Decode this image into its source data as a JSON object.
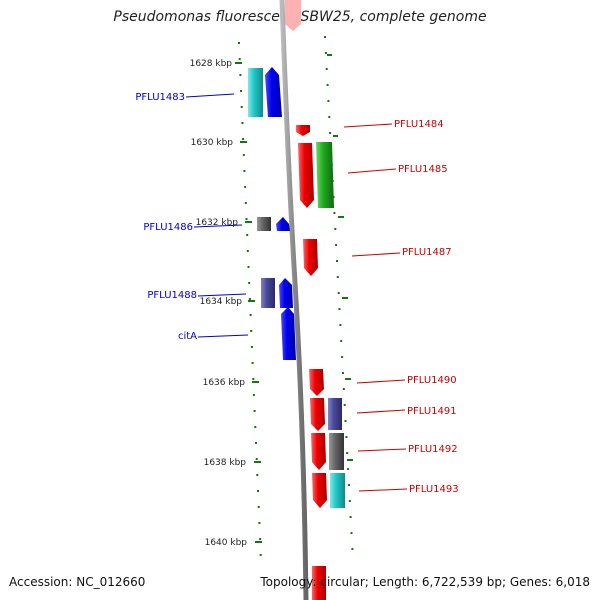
{
  "title": "Pseudomonas fluorescens SBW25, complete genome",
  "footer": {
    "accession": "Accession: NC_012660",
    "topology": "Topology: circular; Length: 6,722,539 bp; Genes: 6,018"
  },
  "kbp_ticks": [
    "1628 kbp",
    "1630 kbp",
    "1632 kbp",
    "1634 kbp",
    "1636 kbp",
    "1638 kbp",
    "1640 kbp"
  ],
  "gene_labels": {
    "left": [
      "PFLU1483",
      "PFLU1486",
      "PFLU1488",
      "citA"
    ],
    "right": [
      "PFLU1484",
      "PFLU1485",
      "PFLU1487",
      "PFLU1490",
      "PFLU1491",
      "PFLU1492",
      "PFLU1493"
    ]
  },
  "colors": {
    "forward_label": "#0000cc",
    "reverse_label": "#cc0000",
    "red": "#ee0000",
    "blue": "#0000ee",
    "cyan": "#20c8c8",
    "green": "#22aa22",
    "gray": "#666666",
    "slate": "#4a4a9a",
    "tick": "#117711"
  }
}
